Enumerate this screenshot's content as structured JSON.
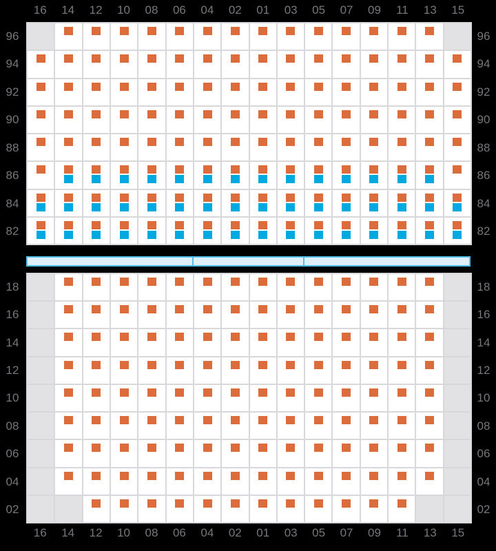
{
  "colors": {
    "background": "#000000",
    "cell_bg": "#ffffff",
    "cell_disabled_bg": "#e2e2e4",
    "grid_line": "#d8d8dc",
    "seat_orange": "#dc6c3c",
    "seat_blue": "#00aae1",
    "walkway_fill": "#e0f0fa",
    "walkway_border": "#52beee",
    "label_color": "#76767d"
  },
  "columns": [
    "16",
    "14",
    "12",
    "10",
    "08",
    "06",
    "04",
    "02",
    "01",
    "03",
    "05",
    "07",
    "09",
    "11",
    "13",
    "15"
  ],
  "cell_key": {
    "o": "orange-square",
    "ob": "orange-square-over-blue-square",
    "x": "gray-blocked-cell"
  },
  "top_grid": {
    "row_labels": [
      "96",
      "94",
      "92",
      "90",
      "88",
      "86",
      "84",
      "82"
    ],
    "rows": [
      [
        "x",
        "o",
        "o",
        "o",
        "o",
        "o",
        "o",
        "o",
        "o",
        "o",
        "o",
        "o",
        "o",
        "o",
        "o",
        "x"
      ],
      [
        "o",
        "o",
        "o",
        "o",
        "o",
        "o",
        "o",
        "o",
        "o",
        "o",
        "o",
        "o",
        "o",
        "o",
        "o",
        "o"
      ],
      [
        "o",
        "o",
        "o",
        "o",
        "o",
        "o",
        "o",
        "o",
        "o",
        "o",
        "o",
        "o",
        "o",
        "o",
        "o",
        "o"
      ],
      [
        "o",
        "o",
        "o",
        "o",
        "o",
        "o",
        "o",
        "o",
        "o",
        "o",
        "o",
        "o",
        "o",
        "o",
        "o",
        "o"
      ],
      [
        "o",
        "o",
        "o",
        "o",
        "o",
        "o",
        "o",
        "o",
        "o",
        "o",
        "o",
        "o",
        "o",
        "o",
        "o",
        "o"
      ],
      [
        "o",
        "ob",
        "ob",
        "ob",
        "ob",
        "ob",
        "ob",
        "ob",
        "ob",
        "ob",
        "ob",
        "ob",
        "ob",
        "ob",
        "ob",
        "o"
      ],
      [
        "ob",
        "ob",
        "ob",
        "ob",
        "ob",
        "ob",
        "ob",
        "ob",
        "ob",
        "ob",
        "ob",
        "ob",
        "ob",
        "ob",
        "ob",
        "ob"
      ],
      [
        "ob",
        "ob",
        "ob",
        "ob",
        "ob",
        "ob",
        "ob",
        "ob",
        "ob",
        "ob",
        "ob",
        "ob",
        "ob",
        "ob",
        "ob",
        "ob"
      ]
    ]
  },
  "walkway": {
    "segments_in_column_units": [
      6,
      4,
      6
    ]
  },
  "bottom_grid": {
    "row_labels": [
      "18",
      "16",
      "14",
      "12",
      "10",
      "08",
      "06",
      "04",
      "02"
    ],
    "rows": [
      [
        "x",
        "o",
        "o",
        "o",
        "o",
        "o",
        "o",
        "o",
        "o",
        "o",
        "o",
        "o",
        "o",
        "o",
        "o",
        "x"
      ],
      [
        "x",
        "o",
        "o",
        "o",
        "o",
        "o",
        "o",
        "o",
        "o",
        "o",
        "o",
        "o",
        "o",
        "o",
        "o",
        "x"
      ],
      [
        "x",
        "o",
        "o",
        "o",
        "o",
        "o",
        "o",
        "o",
        "o",
        "o",
        "o",
        "o",
        "o",
        "o",
        "o",
        "x"
      ],
      [
        "x",
        "o",
        "o",
        "o",
        "o",
        "o",
        "o",
        "o",
        "o",
        "o",
        "o",
        "o",
        "o",
        "o",
        "o",
        "x"
      ],
      [
        "x",
        "o",
        "o",
        "o",
        "o",
        "o",
        "o",
        "o",
        "o",
        "o",
        "o",
        "o",
        "o",
        "o",
        "o",
        "x"
      ],
      [
        "x",
        "o",
        "o",
        "o",
        "o",
        "o",
        "o",
        "o",
        "o",
        "o",
        "o",
        "o",
        "o",
        "o",
        "o",
        "x"
      ],
      [
        "x",
        "o",
        "o",
        "o",
        "o",
        "o",
        "o",
        "o",
        "o",
        "o",
        "o",
        "o",
        "o",
        "o",
        "o",
        "x"
      ],
      [
        "x",
        "o",
        "o",
        "o",
        "o",
        "o",
        "o",
        "o",
        "o",
        "o",
        "o",
        "o",
        "o",
        "o",
        "o",
        "x"
      ],
      [
        "x",
        "x",
        "o",
        "o",
        "o",
        "o",
        "o",
        "o",
        "o",
        "o",
        "o",
        "o",
        "o",
        "o",
        "x",
        "x"
      ]
    ]
  }
}
